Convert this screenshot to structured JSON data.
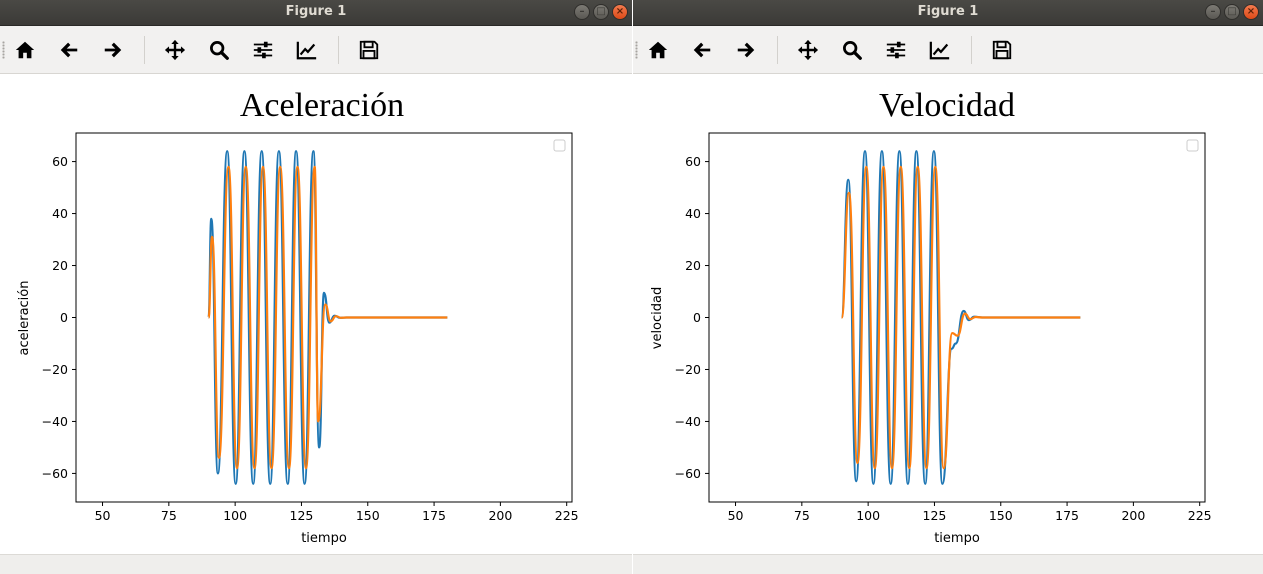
{
  "windows": [
    {
      "title": "Figure 1",
      "plot_title": "Aceleración",
      "xlabel": "tiempo",
      "ylabel": "aceleración",
      "chart_data": {
        "type": "line",
        "title": "Aceleración",
        "xlabel": "tiempo",
        "ylabel": "aceleración",
        "xlim": [
          40,
          227
        ],
        "ylim": [
          -71,
          71
        ],
        "xticks": [
          50,
          75,
          100,
          125,
          150,
          175,
          200,
          225
        ],
        "yticks": [
          -60,
          -40,
          -20,
          0,
          20,
          40,
          60
        ],
        "legend": "top-right (empty)",
        "grid": false,
        "series": [
          {
            "color": "#1f77b4",
            "x": [
              90,
              91,
              93.5,
              97,
              100.2,
              103.5,
              106.8,
              110,
              113.2,
              116.5,
              119.8,
              123,
              126.2,
              129.5,
              131.7,
              133.5,
              135.5,
              137.5,
              139.5,
              142,
              180
            ],
            "values": [
              0,
              38,
              -60,
              64,
              -64,
              64,
              -64,
              64,
              -64,
              64,
              -64,
              64,
              -64,
              64,
              -50,
              9.5,
              -2,
              0.7,
              -0.1,
              0,
              0
            ]
          },
          {
            "color": "#ff7f0e",
            "x": [
              90,
              91.3,
              93.9,
              97.5,
              100.7,
              104,
              107.3,
              110.5,
              113.7,
              117,
              120.3,
              123.5,
              126.7,
              130,
              131.3,
              134,
              136,
              138,
              140,
              142,
              180
            ],
            "values": [
              0,
              31,
              -54,
              58,
              -58,
              58,
              -58,
              58,
              -58,
              58,
              -58,
              58,
              -58,
              58,
              -40,
              5,
              -1.5,
              0.5,
              -0.1,
              0,
              0
            ]
          }
        ]
      }
    },
    {
      "title": "Figure 1",
      "plot_title": "Velocidad",
      "xlabel": "tiempo",
      "ylabel": "velocidad",
      "chart_data": {
        "type": "line",
        "title": "Velocidad",
        "xlabel": "tiempo",
        "ylabel": "velocidad",
        "xlim": [
          40,
          227
        ],
        "ylim": [
          -71,
          71
        ],
        "xticks": [
          50,
          75,
          100,
          125,
          150,
          175,
          200,
          225
        ],
        "yticks": [
          -60,
          -40,
          -20,
          0,
          20,
          40,
          60
        ],
        "legend": "top-right (empty)",
        "grid": false,
        "series": [
          {
            "color": "#1f77b4",
            "x": [
              90,
              92.5,
              95.5,
              98.8,
              102,
              105.2,
              108.5,
              111.8,
              115,
              118.2,
              121.5,
              124.8,
              128,
              131.5,
              133,
              136,
              138,
              140,
              143,
              180
            ],
            "values": [
              0,
              53,
              -63,
              64,
              -64,
              64,
              -64,
              64,
              -64,
              64,
              -64,
              64,
              -64,
              -12,
              -10,
              2.5,
              -1,
              0.3,
              0,
              0
            ]
          },
          {
            "color": "#ff7f0e",
            "x": [
              90,
              92.8,
              96,
              99.3,
              102.5,
              105.8,
              109,
              112.3,
              115.5,
              118.7,
              122,
              125.3,
              128.5,
              131.7,
              133.7,
              136.5,
              138.5,
              140.5,
              143,
              180
            ],
            "values": [
              0,
              48,
              -56,
              58,
              -58,
              58,
              -58,
              58,
              -58,
              58,
              -58,
              58,
              -58,
              -6,
              -7,
              1.5,
              -0.6,
              0.2,
              0,
              0
            ]
          }
        ]
      }
    }
  ],
  "toolbar": {
    "tools": [
      "home-icon",
      "back-icon",
      "forward-icon",
      "pan-icon",
      "zoom-icon",
      "configure-subplots-icon",
      "edit-axis-icon",
      "save-icon"
    ]
  }
}
